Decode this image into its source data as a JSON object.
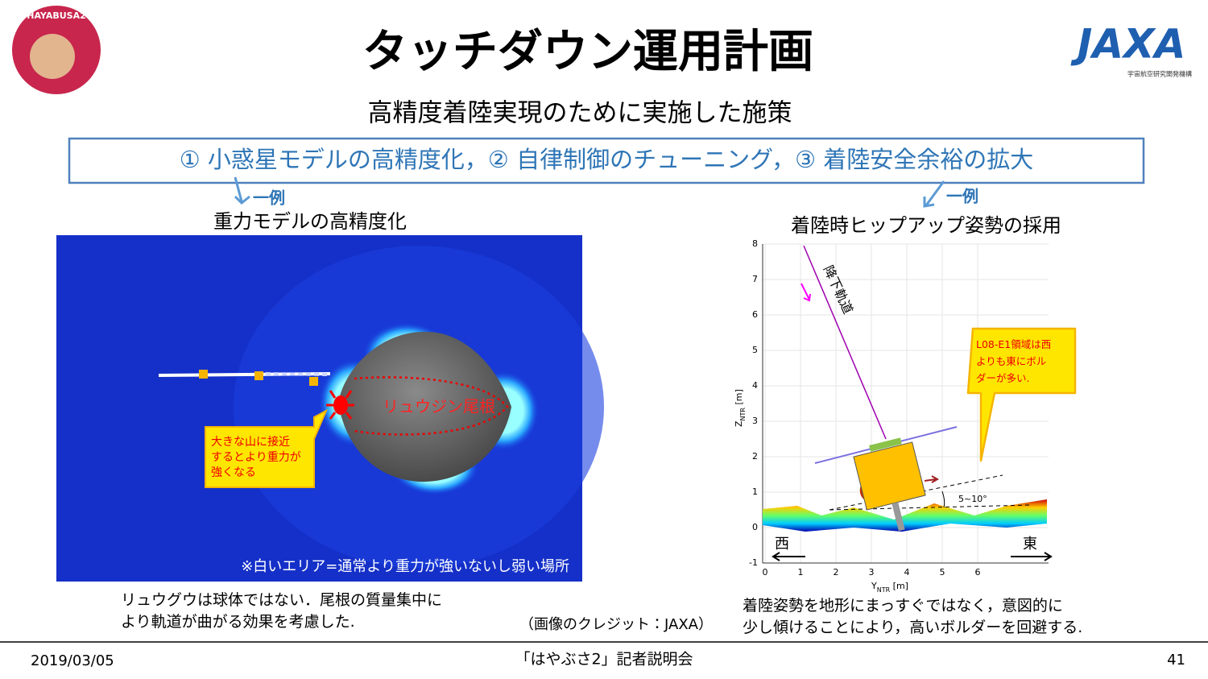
{
  "header": {
    "logo_left": "HAYABUSA2",
    "title": "タッチダウン運用計画",
    "logo_right": "JAXA",
    "logo_right_sub": "宇宙航空研究開発機構",
    "subtitle": "高精度着陸実現のために実施した施策",
    "measures": "① 小惑星モデルの高精度化，② 自律制御のチューニング，③ 着陸安全余裕の拡大"
  },
  "left": {
    "example": "一例",
    "heading": "重力モデルの高精度化",
    "ridge_label": "リュウジン尾根",
    "callout": [
      "大きな山に接近",
      "するとより重力が",
      "強くなる"
    ],
    "note": "※白いエリア=通常より重力が強いないし弱い場所",
    "caption": [
      "リュウグウは球体ではない．尾根の質量集中に",
      "より軌道が曲がる効果を考慮した."
    ],
    "credit": "（画像のクレジット：JAXA）"
  },
  "right": {
    "example": "一例",
    "heading": "着陸時ヒップアップ姿勢の採用",
    "trajectory_label": "降下軌道",
    "callout": [
      "L08-E1領域は西",
      "よりも東にボル",
      "ダーが多い."
    ],
    "angle_label": "5~10°",
    "west": "西",
    "east": "東",
    "xlabel": [
      "Y",
      "NTR",
      " [m]"
    ],
    "ylabel": [
      "Z",
      "NTR",
      " [m]"
    ],
    "xticks": [
      0,
      1,
      2,
      3,
      4,
      5,
      6
    ],
    "yticks": [
      -1,
      0,
      1,
      2,
      3,
      4,
      5,
      6,
      7,
      8
    ],
    "caption": [
      "着陸姿勢を地形にまっすぐではなく，意図的に",
      "少し傾けることにより，高いボルダーを回避する."
    ]
  },
  "footer": {
    "date": "2019/03/05",
    "event": "「はやぶさ2」記者説明会",
    "page": 41
  }
}
